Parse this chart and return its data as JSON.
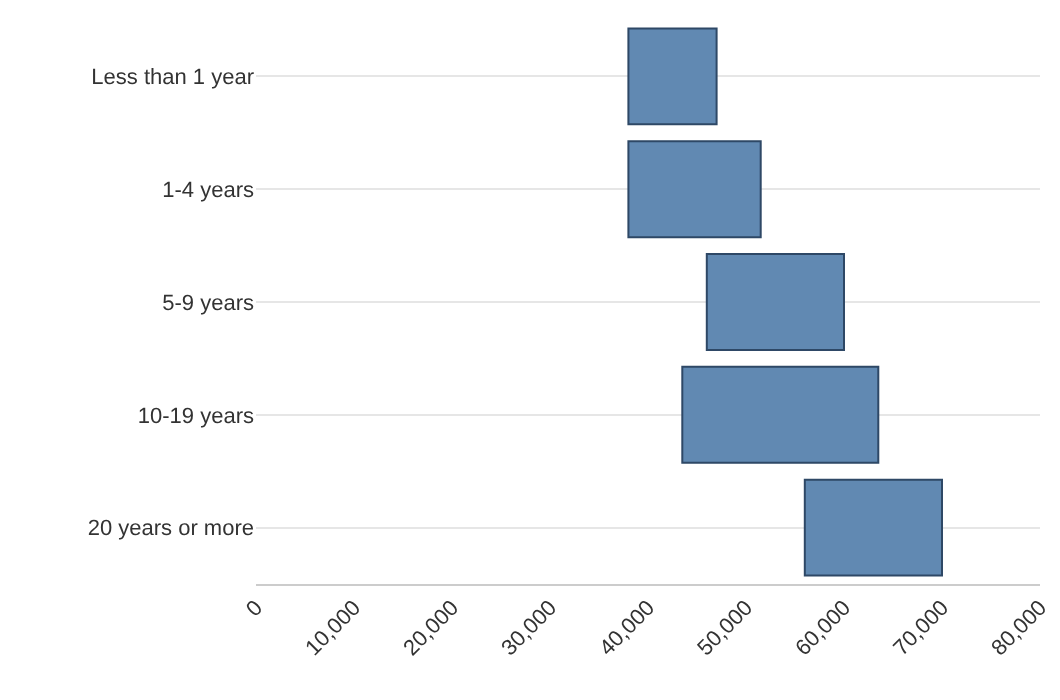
{
  "chart_data": {
    "type": "bar",
    "orientation": "horizontal",
    "categories": [
      "Less than 1 year",
      "1-4 years",
      "5-9 years",
      "10-19 years",
      "20 years or more"
    ],
    "base": [
      38000,
      38000,
      46000,
      43500,
      56000
    ],
    "values": [
      9000,
      13500,
      14000,
      20000,
      14000
    ],
    "color": "#6189b2",
    "xlim": [
      0,
      80000
    ],
    "xticks": [
      {
        "value": 0,
        "label": "0"
      },
      {
        "value": 10000,
        "label": "10,000"
      },
      {
        "value": 20000,
        "label": "20,000"
      },
      {
        "value": 30000,
        "label": "30,000"
      },
      {
        "value": 40000,
        "label": "40,000"
      },
      {
        "value": 50000,
        "label": "50,000"
      },
      {
        "value": 60000,
        "label": "60,000"
      },
      {
        "value": 70000,
        "label": "70,000"
      },
      {
        "value": 80000,
        "label": "80,000"
      }
    ],
    "grid": "y",
    "legend": false
  }
}
